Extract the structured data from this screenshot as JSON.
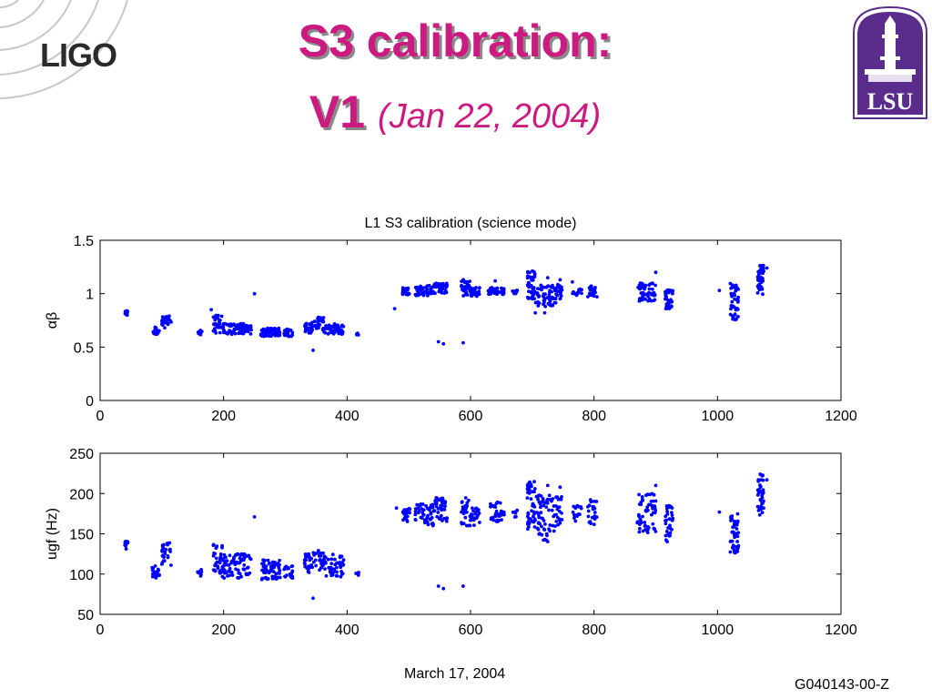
{
  "slide": {
    "logo_text": "LIGO",
    "title_line1": "S3 calibration:",
    "title_version": "V1",
    "title_date": "(Jan 22, 2004)",
    "badge_text": "LSU",
    "footer_date": "March 17, 2004",
    "doc_id": "G040143-00-Z",
    "colors": {
      "title": "#cc1a80",
      "badge_purple": "#5a2d8c",
      "marker": "#0000ff"
    }
  },
  "chart_data": [
    {
      "type": "scatter",
      "title": "L1 S3 calibration (science mode)",
      "xlabel": "",
      "ylabel": "αβ",
      "xlim": [
        0,
        1200
      ],
      "ylim": [
        0,
        1.5
      ],
      "xticks": [
        "0",
        "200",
        "400",
        "600",
        "800",
        "1000",
        "1200"
      ],
      "yticks": [
        "0",
        "0.5",
        "1",
        "1.5"
      ],
      "grid": false,
      "clusters": [
        {
          "x": [
            40,
            45
          ],
          "y": [
            0.79,
            0.84
          ],
          "n": 14
        },
        {
          "x": [
            84,
            96
          ],
          "y": [
            0.62,
            0.69
          ],
          "n": 22
        },
        {
          "x": [
            100,
            115
          ],
          "y": [
            0.68,
            0.79
          ],
          "n": 26
        },
        {
          "x": [
            158,
            165
          ],
          "y": [
            0.61,
            0.66
          ],
          "n": 12
        },
        {
          "x": [
            182,
            198
          ],
          "y": [
            0.63,
            0.8
          ],
          "n": 30
        },
        {
          "x": [
            198,
            245
          ],
          "y": [
            0.62,
            0.72
          ],
          "n": 80
        },
        {
          "x": [
            260,
            292
          ],
          "y": [
            0.6,
            0.68
          ],
          "n": 55
        },
        {
          "x": [
            298,
            312
          ],
          "y": [
            0.6,
            0.67
          ],
          "n": 20
        },
        {
          "x": [
            330,
            345
          ],
          "y": [
            0.63,
            0.73
          ],
          "n": 25
        },
        {
          "x": [
            345,
            362
          ],
          "y": [
            0.66,
            0.78
          ],
          "n": 30
        },
        {
          "x": [
            362,
            395
          ],
          "y": [
            0.62,
            0.72
          ],
          "n": 50
        },
        {
          "x": [
            414,
            419
          ],
          "y": [
            0.61,
            0.63
          ],
          "n": 5
        },
        {
          "x": [
            490,
            502
          ],
          "y": [
            0.99,
            1.06
          ],
          "n": 25
        },
        {
          "x": [
            510,
            540
          ],
          "y": [
            0.98,
            1.08
          ],
          "n": 50
        },
        {
          "x": [
            540,
            562
          ],
          "y": [
            1.0,
            1.1
          ],
          "n": 40
        },
        {
          "x": [
            585,
            600
          ],
          "y": [
            0.98,
            1.14
          ],
          "n": 30
        },
        {
          "x": [
            600,
            615
          ],
          "y": [
            0.97,
            1.06
          ],
          "n": 25
        },
        {
          "x": [
            628,
            655
          ],
          "y": [
            0.99,
            1.06
          ],
          "n": 40
        },
        {
          "x": [
            668,
            676
          ],
          "y": [
            1.0,
            1.04
          ],
          "n": 8
        },
        {
          "x": [
            692,
            705
          ],
          "y": [
            0.95,
            1.22
          ],
          "n": 45
        },
        {
          "x": [
            705,
            738
          ],
          "y": [
            0.88,
            1.08
          ],
          "n": 60
        },
        {
          "x": [
            738,
            748
          ],
          "y": [
            0.95,
            1.1
          ],
          "n": 20
        },
        {
          "x": [
            765,
            780
          ],
          "y": [
            0.98,
            1.05
          ],
          "n": 15
        },
        {
          "x": [
            790,
            805
          ],
          "y": [
            0.97,
            1.08
          ],
          "n": 25
        },
        {
          "x": [
            870,
            900
          ],
          "y": [
            0.93,
            1.1
          ],
          "n": 55
        },
        {
          "x": [
            915,
            928
          ],
          "y": [
            0.86,
            1.04
          ],
          "n": 30
        },
        {
          "x": [
            1020,
            1034
          ],
          "y": [
            0.75,
            1.1
          ],
          "n": 45
        },
        {
          "x": [
            1065,
            1075
          ],
          "y": [
            0.98,
            1.28
          ],
          "n": 40
        }
      ],
      "points": [
        {
          "x": 180,
          "y": 0.85
        },
        {
          "x": 250,
          "y": 1.0
        },
        {
          "x": 345,
          "y": 0.47
        },
        {
          "x": 477,
          "y": 0.86
        },
        {
          "x": 548,
          "y": 0.55
        },
        {
          "x": 556,
          "y": 0.53
        },
        {
          "x": 588,
          "y": 0.54
        },
        {
          "x": 640,
          "y": 1.12
        },
        {
          "x": 725,
          "y": 1.15
        },
        {
          "x": 745,
          "y": 1.13
        },
        {
          "x": 765,
          "y": 1.11
        },
        {
          "x": 1003,
          "y": 1.03
        },
        {
          "x": 1080,
          "y": 1.24
        },
        {
          "x": 900,
          "y": 1.2
        },
        {
          "x": 705,
          "y": 0.82
        },
        {
          "x": 720,
          "y": 0.82
        }
      ]
    },
    {
      "type": "scatter",
      "title": "",
      "xlabel": "",
      "ylabel": "ugf (Hz)",
      "xlim": [
        0,
        1200
      ],
      "ylim": [
        50,
        250
      ],
      "xticks": [
        "0",
        "200",
        "400",
        "600",
        "800",
        "1000",
        "1200"
      ],
      "yticks": [
        "50",
        "100",
        "150",
        "200",
        "250"
      ],
      "grid": false,
      "clusters": [
        {
          "x": [
            40,
            45
          ],
          "y": [
            130,
            142
          ],
          "n": 14
        },
        {
          "x": [
            84,
            96
          ],
          "y": [
            95,
            110
          ],
          "n": 22
        },
        {
          "x": [
            100,
            115
          ],
          "y": [
            108,
            140
          ],
          "n": 26
        },
        {
          "x": [
            158,
            165
          ],
          "y": [
            95,
            107
          ],
          "n": 12
        },
        {
          "x": [
            182,
            198
          ],
          "y": [
            100,
            142
          ],
          "n": 30
        },
        {
          "x": [
            198,
            245
          ],
          "y": [
            95,
            125
          ],
          "n": 80
        },
        {
          "x": [
            260,
            292
          ],
          "y": [
            93,
            118
          ],
          "n": 55
        },
        {
          "x": [
            298,
            312
          ],
          "y": [
            95,
            110
          ],
          "n": 20
        },
        {
          "x": [
            330,
            345
          ],
          "y": [
            100,
            125
          ],
          "n": 25
        },
        {
          "x": [
            345,
            362
          ],
          "y": [
            105,
            130
          ],
          "n": 30
        },
        {
          "x": [
            362,
            395
          ],
          "y": [
            95,
            125
          ],
          "n": 50
        },
        {
          "x": [
            414,
            419
          ],
          "y": [
            98,
            102
          ],
          "n": 5
        },
        {
          "x": [
            490,
            502
          ],
          "y": [
            165,
            182
          ],
          "n": 25
        },
        {
          "x": [
            510,
            540
          ],
          "y": [
            160,
            188
          ],
          "n": 50
        },
        {
          "x": [
            540,
            562
          ],
          "y": [
            165,
            195
          ],
          "n": 40
        },
        {
          "x": [
            585,
            600
          ],
          "y": [
            160,
            200
          ],
          "n": 30
        },
        {
          "x": [
            600,
            615
          ],
          "y": [
            158,
            182
          ],
          "n": 25
        },
        {
          "x": [
            628,
            655
          ],
          "y": [
            165,
            190
          ],
          "n": 40
        },
        {
          "x": [
            668,
            676
          ],
          "y": [
            170,
            180
          ],
          "n": 8
        },
        {
          "x": [
            692,
            705
          ],
          "y": [
            155,
            215
          ],
          "n": 45
        },
        {
          "x": [
            705,
            738
          ],
          "y": [
            140,
            200
          ],
          "n": 60
        },
        {
          "x": [
            738,
            748
          ],
          "y": [
            160,
            200
          ],
          "n": 20
        },
        {
          "x": [
            765,
            780
          ],
          "y": [
            165,
            185
          ],
          "n": 15
        },
        {
          "x": [
            790,
            805
          ],
          "y": [
            160,
            195
          ],
          "n": 25
        },
        {
          "x": [
            870,
            900
          ],
          "y": [
            150,
            200
          ],
          "n": 55
        },
        {
          "x": [
            915,
            928
          ],
          "y": [
            140,
            185
          ],
          "n": 30
        },
        {
          "x": [
            1020,
            1034
          ],
          "y": [
            125,
            175
          ],
          "n": 45
        },
        {
          "x": [
            1065,
            1075
          ],
          "y": [
            165,
            225
          ],
          "n": 40
        }
      ],
      "points": [
        {
          "x": 250,
          "y": 171
        },
        {
          "x": 345,
          "y": 70
        },
        {
          "x": 548,
          "y": 85
        },
        {
          "x": 556,
          "y": 82
        },
        {
          "x": 588,
          "y": 85
        },
        {
          "x": 725,
          "y": 210
        },
        {
          "x": 745,
          "y": 208
        },
        {
          "x": 1003,
          "y": 177
        },
        {
          "x": 1080,
          "y": 217
        },
        {
          "x": 900,
          "y": 210
        },
        {
          "x": 480,
          "y": 182
        }
      ]
    }
  ]
}
